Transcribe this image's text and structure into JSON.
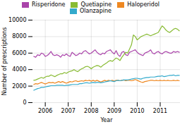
{
  "chart_data": {
    "type": "line",
    "xlabel": "Year",
    "ylabel": "Number of prescriptions",
    "categories": [
      null,
      null,
      null,
      null,
      null,
      null,
      "2006",
      null,
      null,
      null,
      null,
      null,
      null,
      null,
      null,
      null,
      null,
      null,
      "2007",
      null,
      null,
      null,
      null,
      null,
      null,
      null,
      null,
      null,
      null,
      null,
      "2008",
      null,
      null,
      null,
      null,
      null,
      null,
      null,
      null,
      null,
      null,
      null,
      "2009",
      null,
      null,
      null,
      null,
      null,
      null,
      null,
      null,
      null,
      null,
      null,
      "2010",
      null,
      null,
      null,
      null,
      null,
      null,
      null,
      null,
      null,
      null,
      null,
      "2011",
      null,
      null,
      null,
      null,
      null,
      null,
      null,
      null,
      null,
      null
    ],
    "series": [
      {
        "name": "Risperidone",
        "color": "#aa44aa",
        "values": [
          5600,
          5500,
          5800,
          5700,
          6000,
          5900,
          5600,
          5700,
          5900,
          6200,
          5800,
          5700,
          5800,
          5700,
          5500,
          5800,
          5700,
          5900,
          5700,
          5600,
          6100,
          5900,
          5700,
          5800,
          6000,
          5900,
          6200,
          6300,
          6100,
          5900,
          6000,
          6200,
          6400,
          6100,
          5900,
          5800,
          6000,
          5900,
          6200,
          6300,
          6400,
          6100,
          5900,
          6300,
          5800,
          5600,
          6100,
          6200,
          5800,
          5700,
          6100,
          6200,
          6300,
          6400,
          6100,
          5900,
          5800,
          5700,
          6000,
          6100,
          6200,
          6400,
          6000,
          5900,
          6100,
          6200,
          6000,
          5900,
          6100,
          6200,
          6100,
          6000,
          6000,
          6200,
          6100,
          6200,
          6100
        ]
      },
      {
        "name": "Quetiapine",
        "color": "#88bb33",
        "values": [
          2700,
          2750,
          2850,
          2950,
          3050,
          2950,
          3100,
          3200,
          3200,
          3350,
          3250,
          3150,
          3300,
          3400,
          3500,
          3500,
          3650,
          3550,
          3700,
          3800,
          3850,
          4000,
          3850,
          3750,
          3950,
          4100,
          4200,
          4350,
          4400,
          4300,
          4100,
          4300,
          4400,
          4500,
          4450,
          4300,
          4500,
          4650,
          4800,
          5000,
          5100,
          5000,
          5200,
          5400,
          5300,
          5100,
          5500,
          5800,
          6100,
          6000,
          6500,
          7000,
          8200,
          8000,
          7600,
          7800,
          8000,
          8100,
          8200,
          8300,
          8200,
          8100,
          8200,
          8300,
          8400,
          8500,
          8900,
          9300,
          9100,
          8800,
          8600,
          8500,
          8700,
          8900,
          9000,
          8900,
          8700
        ]
      },
      {
        "name": "Haloperidol",
        "color": "#ee8822",
        "values": [
          2200,
          2300,
          2250,
          2350,
          2450,
          2350,
          2250,
          2350,
          2450,
          2400,
          2450,
          2350,
          2450,
          2550,
          2450,
          2550,
          2450,
          2350,
          2450,
          2550,
          2500,
          2600,
          2650,
          2550,
          2600,
          2650,
          2600,
          2700,
          2650,
          2700,
          2600,
          2700,
          2600,
          2700,
          2600,
          2500,
          2600,
          2700,
          2600,
          2700,
          2650,
          2700,
          2600,
          2700,
          2700,
          2650,
          2700,
          2750,
          2650,
          2700,
          2700,
          2650,
          2700,
          2800,
          2700,
          2600,
          2500,
          2450,
          2550,
          2600,
          2650,
          2700,
          2700,
          2650,
          2700,
          2650,
          2700,
          2650,
          2700,
          2650,
          2700,
          2650,
          2650,
          2700,
          2650,
          2700,
          2650
        ]
      },
      {
        "name": "Olanzapine",
        "color": "#33aacc",
        "values": [
          1500,
          1600,
          1700,
          1750,
          1850,
          1850,
          1900,
          1950,
          2000,
          2050,
          2050,
          2050,
          2100,
          2100,
          2100,
          2100,
          2050,
          2100,
          2100,
          2150,
          2200,
          2200,
          2200,
          2200,
          2300,
          2300,
          2350,
          2400,
          2400,
          2350,
          2400,
          2450,
          2400,
          2450,
          2450,
          2400,
          2450,
          2500,
          2550,
          2600,
          2650,
          2600,
          2550,
          2650,
          2700,
          2650,
          2700,
          2750,
          2750,
          2750,
          2800,
          2850,
          2900,
          2950,
          2950,
          2900,
          2850,
          2950,
          3000,
          3050,
          3050,
          3100,
          3100,
          3100,
          3150,
          3200,
          3200,
          3250,
          3150,
          3200,
          3250,
          3300,
          3300,
          3350,
          3250,
          3300,
          3300
        ]
      }
    ],
    "ylim": [
      0,
      10000
    ],
    "yticks": [
      0,
      2000,
      4000,
      6000,
      8000,
      10000
    ],
    "grid": true,
    "legend": "upper center"
  }
}
